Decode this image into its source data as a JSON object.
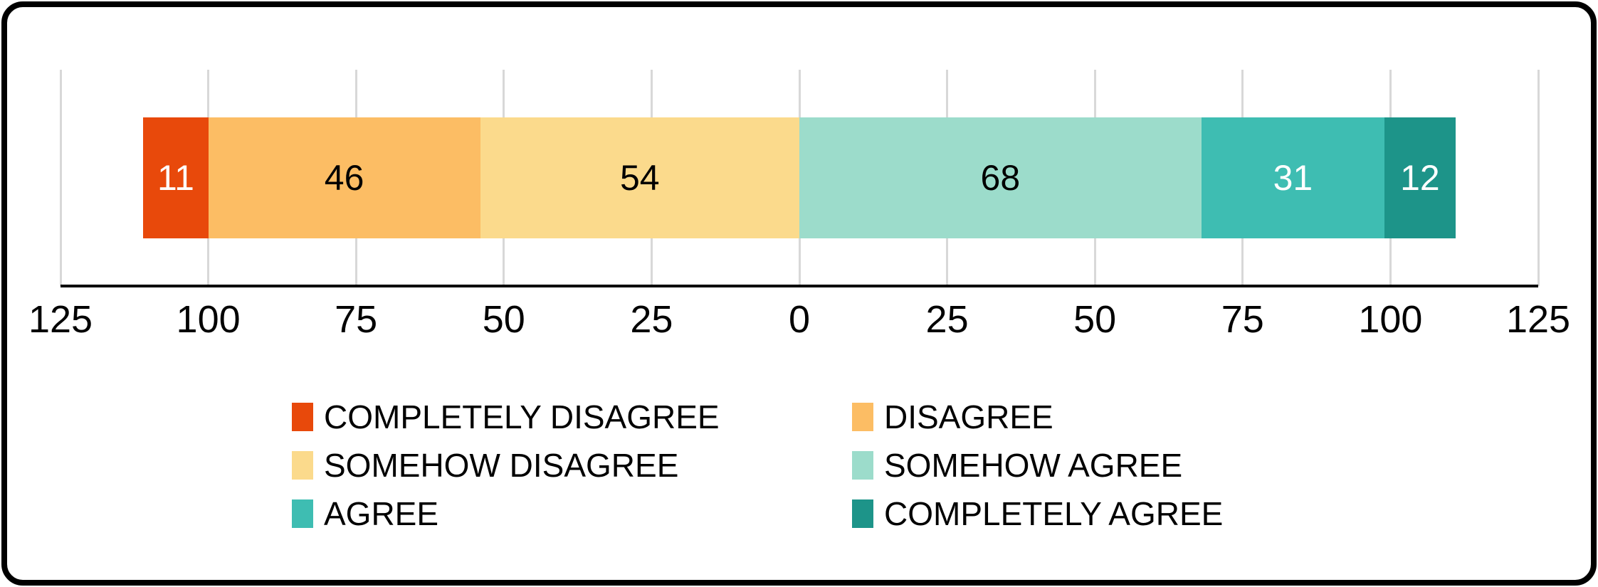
{
  "frame": {
    "background": "#FFFFFF",
    "border_color": "#000000"
  },
  "chart_data": {
    "type": "bar",
    "orientation": "horizontal",
    "diverging": true,
    "title": "",
    "xlabel": "",
    "ylabel": "",
    "xlim": [
      -125,
      125
    ],
    "x_ticks": [
      -125,
      -100,
      -75,
      -50,
      -25,
      0,
      25,
      50,
      75,
      100,
      125
    ],
    "x_tick_labels": [
      "125",
      "100",
      "75",
      "50",
      "25",
      "0",
      "25",
      "50",
      "75",
      "100",
      "125"
    ],
    "grid": true,
    "gridline_color": "#D8D8D8",
    "axis_line_color": "#000000",
    "negative_total": 111,
    "positive_total": 111,
    "legend_position": "bottom",
    "segments": [
      {
        "label": "COMPLETELY DISAGREE",
        "value": 11,
        "side": "negative",
        "color": "#E8490B",
        "value_label": "11",
        "value_label_color": "#FFFFFF"
      },
      {
        "label": "DISAGREE",
        "value": 46,
        "side": "negative",
        "color": "#FCBD64",
        "value_label": "46",
        "value_label_color": "#000000"
      },
      {
        "label": "SOMEHOW DISAGREE",
        "value": 54,
        "side": "negative",
        "color": "#FBDA8C",
        "value_label": "54",
        "value_label_color": "#000000"
      },
      {
        "label": "SOMEHOW AGREE",
        "value": 68,
        "side": "positive",
        "color": "#9CDCCB",
        "value_label": "68",
        "value_label_color": "#000000"
      },
      {
        "label": "AGREE",
        "value": 31,
        "side": "positive",
        "color": "#3EBDB2",
        "value_label": "31",
        "value_label_color": "#FFFFFF"
      },
      {
        "label": "COMPLETELY AGREE",
        "value": 12,
        "side": "positive",
        "color": "#1D9489",
        "value_label": "12",
        "value_label_color": "#FFFFFF"
      }
    ]
  },
  "legend": {
    "items": [
      {
        "label": "COMPLETELY DISAGREE",
        "color": "#E8490B",
        "row": 0,
        "col": 0
      },
      {
        "label": "DISAGREE",
        "color": "#FCBD64",
        "row": 0,
        "col": 1
      },
      {
        "label": "SOMEHOW DISAGREE",
        "color": "#FBDA8C",
        "row": 1,
        "col": 0
      },
      {
        "label": "SOMEHOW AGREE",
        "color": "#9CDCCB",
        "row": 1,
        "col": 1
      },
      {
        "label": "AGREE",
        "color": "#3EBDB2",
        "row": 2,
        "col": 0
      },
      {
        "label": "COMPLETELY AGREE",
        "color": "#1D9489",
        "row": 2,
        "col": 1
      }
    ]
  }
}
